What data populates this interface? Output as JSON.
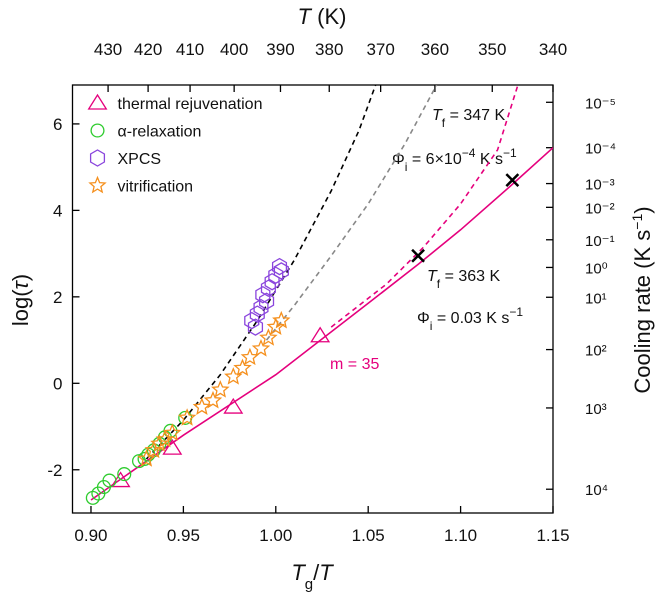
{
  "chart_data": {
    "type": "scatter",
    "xlabel": [
      "T",
      "g",
      "/",
      "T"
    ],
    "ylabel": [
      "log(",
      "τ",
      ")"
    ],
    "x2label": [
      "T",
      " (K)"
    ],
    "y2label": [
      "Cooling rate (K s",
      "−1",
      ")"
    ],
    "xlim": [
      0.89,
      1.15
    ],
    "xticks": [
      {
        "value": 0.9,
        "label": "0.90"
      },
      0.95,
      {
        "value": 1.0,
        "label": "1.00"
      },
      1.05,
      {
        "value": 1.1,
        "label": "1.10"
      },
      1.15
    ],
    "ylim": [
      -3,
      6.9
    ],
    "yticks": [
      -2,
      0,
      2,
      4,
      6
    ],
    "x2lim": [
      439.3,
      340
    ],
    "x2scale": "reciprocal",
    "x2ticks": [
      430,
      420,
      410,
      400,
      390,
      380,
      370,
      360,
      350,
      340
    ],
    "y2lim": [
      -3,
      6.9
    ],
    "y2ticks": [
      {
        "value": 6.5,
        "label": "10⁻⁵"
      },
      {
        "value": 5.45,
        "label": "10⁻⁴"
      },
      {
        "value": 4.62,
        "label": "10⁻³"
      },
      {
        "value": 4.07,
        "label": "10⁻²"
      },
      {
        "value": 3.32,
        "label": "10⁻¹"
      },
      {
        "value": 2.68,
        "label": "10⁰"
      },
      {
        "value": 1.99,
        "label": "10¹"
      },
      {
        "value": 0.78,
        "label": "10²"
      },
      {
        "value": -0.57,
        "label": "10³"
      },
      {
        "value": -2.45,
        "label": "10⁴"
      }
    ],
    "legend": "upper left",
    "series": [
      {
        "name": "thermal rejuvenation",
        "color": "#e5007d",
        "marker": "triangle",
        "x": [
          0.916,
          0.944,
          0.977,
          1.024
        ],
        "values": [
          -2.25,
          -1.5,
          -0.55,
          1.1
        ]
      },
      {
        "name": "α-relaxation",
        "color": "#2fcc2f",
        "marker": "circle",
        "x": [
          0.901,
          0.904,
          0.907,
          0.91,
          0.918,
          0.926,
          0.929,
          0.931,
          0.934,
          0.937,
          0.94,
          0.943,
          0.951
        ],
        "values": [
          -2.65,
          -2.55,
          -2.4,
          -2.25,
          -2.1,
          -1.8,
          -1.75,
          -1.65,
          -1.55,
          -1.4,
          -1.25,
          -1.1,
          -0.8
        ]
      },
      {
        "name": "XPCS",
        "color": "#8a45dd",
        "marker": "hexagon",
        "x": [
          0.987,
          0.989,
          0.99,
          0.992,
          0.993,
          0.995,
          0.996,
          0.998,
          1.0,
          1.002,
          1.003
        ],
        "values": [
          1.45,
          1.3,
          1.6,
          1.75,
          2.05,
          1.9,
          2.2,
          2.35,
          2.5,
          2.7,
          2.6
        ]
      },
      {
        "name": "vitrification",
        "color": "#f5901e",
        "marker": "star",
        "x": [
          0.93,
          0.934,
          0.937,
          0.94,
          0.944,
          0.952,
          0.96,
          0.966,
          0.97,
          0.977,
          0.982,
          0.986,
          0.992,
          0.996,
          1.0,
          1.003
        ],
        "values": [
          -1.75,
          -1.55,
          -1.4,
          -1.3,
          -1.15,
          -0.8,
          -0.55,
          -0.4,
          -0.15,
          0.15,
          0.35,
          0.6,
          0.8,
          1.05,
          1.3,
          1.45
        ]
      }
    ],
    "lines": [
      {
        "style": "solid",
        "color": "#e5007d",
        "x": [
          0.9,
          0.95,
          1.0,
          1.05,
          1.077,
          1.1,
          1.128,
          1.15
        ],
        "values": [
          -2.7,
          -1.2,
          0.2,
          1.85,
          2.75,
          3.55,
          4.6,
          5.45
        ]
      },
      {
        "style": "dashed",
        "color": "#e5007d",
        "x": [
          1.03,
          1.06,
          1.08,
          1.1,
          1.12,
          1.131
        ],
        "values": [
          1.3,
          2.3,
          3.15,
          4.15,
          5.4,
          6.9
        ]
      },
      {
        "style": "dashed",
        "color": "#000000",
        "x": [
          0.93,
          0.95,
          0.97,
          0.99,
          1.01,
          1.03,
          1.045,
          1.054
        ],
        "values": [
          -1.75,
          -0.85,
          0.2,
          1.45,
          2.85,
          4.45,
          5.85,
          6.9
        ]
      },
      {
        "style": "dashed",
        "color": "#888888",
        "x": [
          0.995,
          1.01,
          1.03,
          1.05,
          1.07,
          1.087
        ],
        "values": [
          1.0,
          1.8,
          2.95,
          4.15,
          5.55,
          6.9
        ]
      }
    ],
    "crosses": {
      "color": "#000000",
      "x": [
        1.077,
        1.128
      ],
      "values": [
        2.95,
        4.7
      ]
    },
    "annotations": [
      [
        "T",
        "f",
        " = 347 K"
      ],
      [
        "Φ",
        "i",
        " = 6×10",
        "−4",
        " K s",
        "−1"
      ],
      [
        "T",
        "f",
        " = 363 K"
      ],
      [
        "Φ",
        "i",
        " = 0.03 K s",
        "−1"
      ],
      [
        "m = 35"
      ]
    ]
  }
}
